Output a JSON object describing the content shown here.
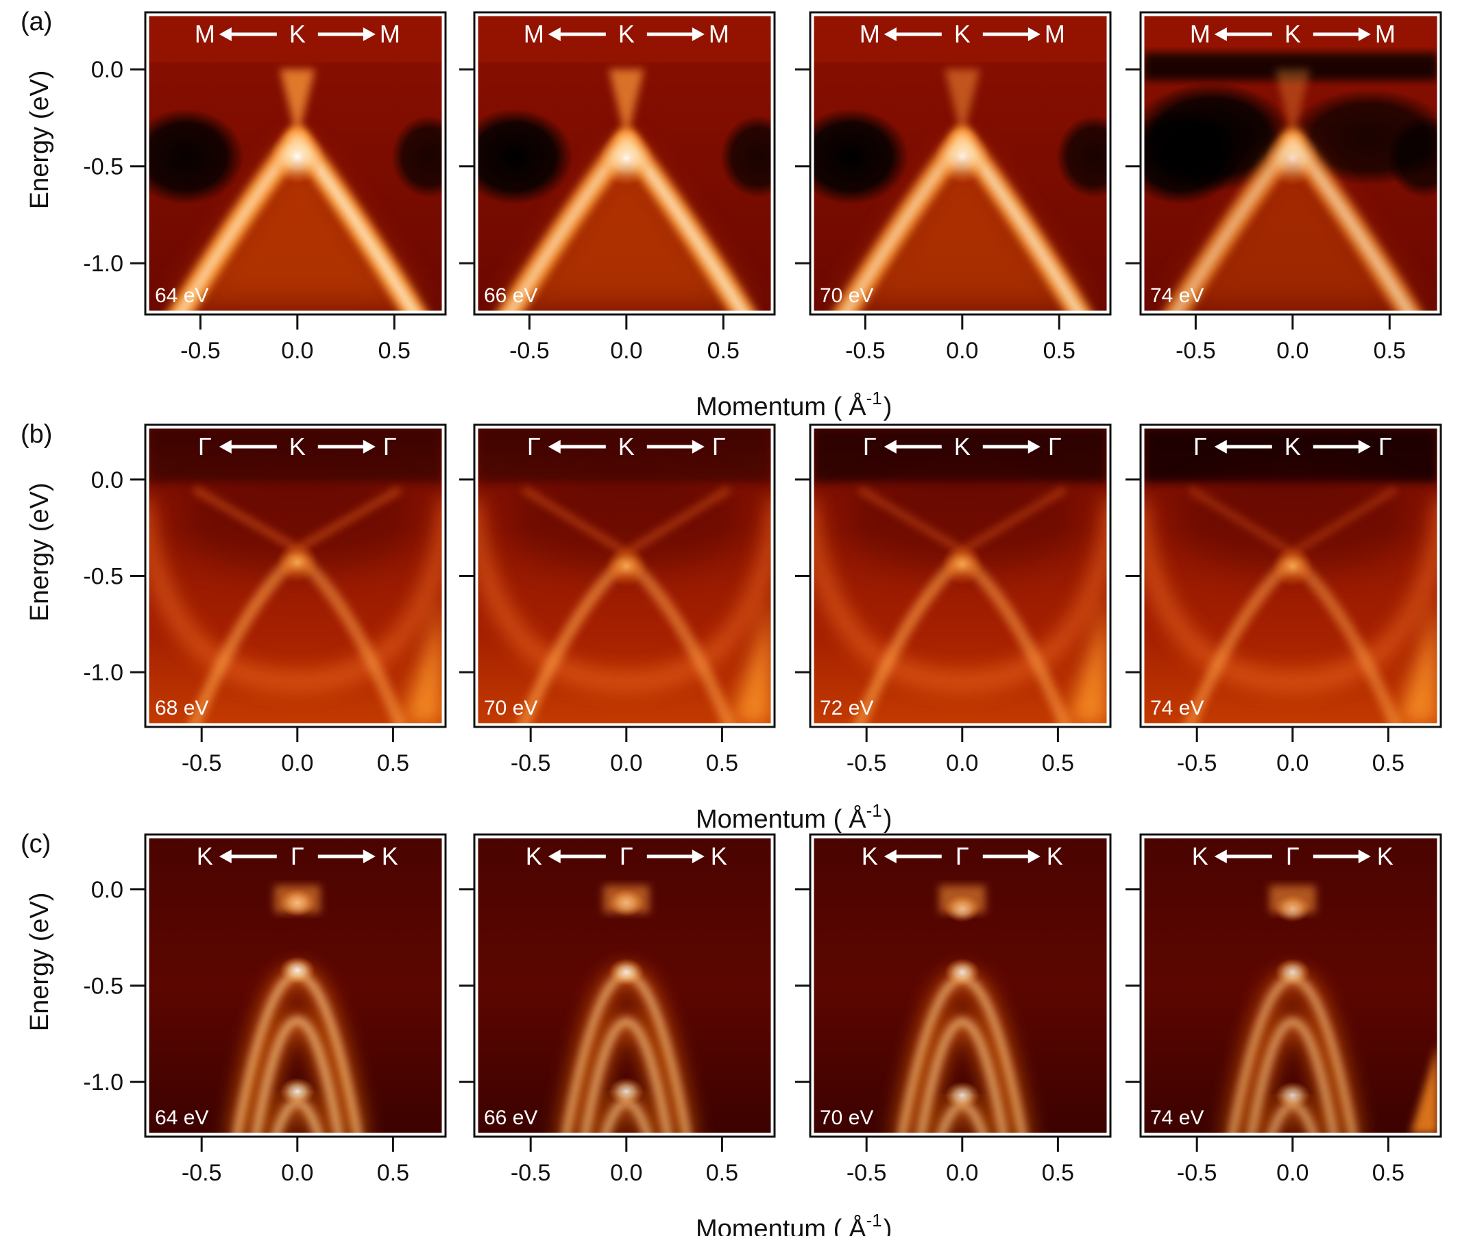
{
  "chart_data": {
    "type": "heatmap",
    "colormap": [
      "#000000",
      "#5a0500",
      "#a31c00",
      "#e85a00",
      "#ffa23c",
      "#ffe0b0",
      "#ffffff"
    ],
    "rows": [
      {
        "label": "(a)",
        "ylabel": "Energy (eV)",
        "xlabel": "Momentum (",
        "xlabel_unit": "Å",
        "xlabel_exp": "-1",
        "xlabel_close": ")",
        "ylim": [
          -1.25,
          0.28
        ],
        "xlim": [
          -0.77,
          0.75
        ],
        "yticks": [
          0.0,
          -0.5,
          -1.0
        ],
        "ytick_labels": [
          "0.0",
          "-0.5",
          "-1.0"
        ],
        "xticks": [
          -0.5,
          0.0,
          0.5
        ],
        "xtick_labels": [
          "-0.5",
          "0.0",
          "0.5"
        ],
        "direction": {
          "left": "M",
          "center": "K",
          "right": "M"
        },
        "panels": [
          {
            "photon_energy": "64 eV",
            "dirac_energy": -0.36,
            "upper_intensity": 0.75,
            "lower_intensity": 1.0
          },
          {
            "photon_energy": "66 eV",
            "dirac_energy": -0.37,
            "upper_intensity": 0.7,
            "lower_intensity": 0.95
          },
          {
            "photon_energy": "70 eV",
            "dirac_energy": -0.36,
            "upper_intensity": 0.5,
            "lower_intensity": 0.9
          },
          {
            "photon_energy": "74 eV",
            "dirac_energy": -0.37,
            "upper_intensity": 0.35,
            "lower_intensity": 0.75
          }
        ]
      },
      {
        "label": "(b)",
        "ylabel": "Energy (eV)",
        "xlabel": "Momentum (",
        "xlabel_unit": "Å",
        "xlabel_exp": "-1",
        "xlabel_close": ")",
        "ylim": [
          -1.27,
          0.27
        ],
        "xlim": [
          -0.78,
          0.76
        ],
        "yticks": [
          0.0,
          -0.5,
          -1.0
        ],
        "ytick_labels": [
          "0.0",
          "-0.5",
          "-1.0"
        ],
        "xticks": [
          -0.5,
          0.0,
          0.5
        ],
        "xtick_labels": [
          "-0.5",
          "0.0",
          "0.5"
        ],
        "direction": {
          "left": "Γ",
          "center": "K",
          "right": "Γ"
        },
        "panels": [
          {
            "photon_energy": "68 eV",
            "dirac_energy": -0.36,
            "upper_intensity": 0.55,
            "lower_intensity": 0.6
          },
          {
            "photon_energy": "70 eV",
            "dirac_energy": -0.38,
            "upper_intensity": 0.5,
            "lower_intensity": 0.6
          },
          {
            "photon_energy": "72 eV",
            "dirac_energy": -0.37,
            "upper_intensity": 0.45,
            "lower_intensity": 0.6
          },
          {
            "photon_energy": "74 eV",
            "dirac_energy": -0.38,
            "upper_intensity": 0.4,
            "lower_intensity": 0.55
          }
        ]
      },
      {
        "label": "(c)",
        "ylabel": "Energy (eV)",
        "xlabel": "Momentum (",
        "xlabel_unit": "Å",
        "xlabel_exp": "-1",
        "xlabel_close": ")",
        "ylim": [
          -1.27,
          0.27
        ],
        "xlim": [
          -0.78,
          0.76
        ],
        "yticks": [
          0.0,
          -0.5,
          -1.0
        ],
        "ytick_labels": [
          "0.0",
          "-0.5",
          "-1.0"
        ],
        "xticks": [
          -0.5,
          0.0,
          0.5
        ],
        "xtick_labels": [
          "-0.5",
          "0.0",
          "0.5"
        ],
        "direction": {
          "left": "K",
          "center": "Γ",
          "right": "K"
        },
        "panels": [
          {
            "photon_energy": "64 eV",
            "band_tops": [
              -0.02,
              -0.37,
              -1.0
            ],
            "intensity": 0.95
          },
          {
            "photon_energy": "66 eV",
            "band_tops": [
              -0.02,
              -0.38,
              -1.0
            ],
            "intensity": 0.9
          },
          {
            "photon_energy": "70 eV",
            "band_tops": [
              -0.05,
              -0.38,
              -1.02
            ],
            "intensity": 0.9
          },
          {
            "photon_energy": "74 eV",
            "band_tops": [
              -0.05,
              -0.38,
              -1.02
            ],
            "intensity": 0.85
          }
        ]
      }
    ]
  }
}
